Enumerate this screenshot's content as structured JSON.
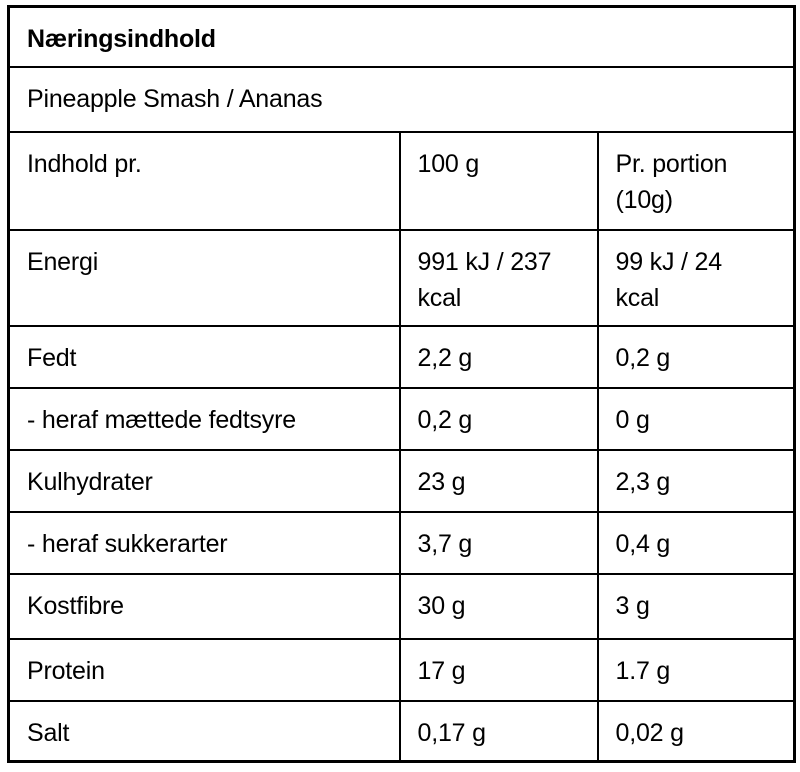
{
  "table": {
    "title": "Næringsindhold",
    "product_name": "Pineapple Smash / Ananas",
    "columns": {
      "label": "Indhold pr.",
      "per_100g": "100 g",
      "per_portion": "Pr. portion\n(10g)"
    },
    "rows": [
      {
        "label": "Energi",
        "per_100g": "991 kJ / 237\nkcal",
        "per_portion": "99 kJ / 24\nkcal"
      },
      {
        "label": "Fedt",
        "per_100g": "2,2 g",
        "per_portion": "0,2 g"
      },
      {
        "label": "- heraf mættede fedtsyre",
        "per_100g": "0,2 g",
        "per_portion": "0 g"
      },
      {
        "label": "Kulhydrater",
        "per_100g": "23 g",
        "per_portion": "2,3 g"
      },
      {
        "label": "- heraf sukkerarter",
        "per_100g": "3,7 g",
        "per_portion": "0,4 g"
      },
      {
        "label": "Kostfibre",
        "per_100g": "30 g",
        "per_portion": "3 g"
      },
      {
        "label": "Protein",
        "per_100g": "17 g",
        "per_portion": "1.7 g"
      },
      {
        "label": "Salt",
        "per_100g": "0,17 g",
        "per_portion": "0,02 g"
      }
    ]
  }
}
